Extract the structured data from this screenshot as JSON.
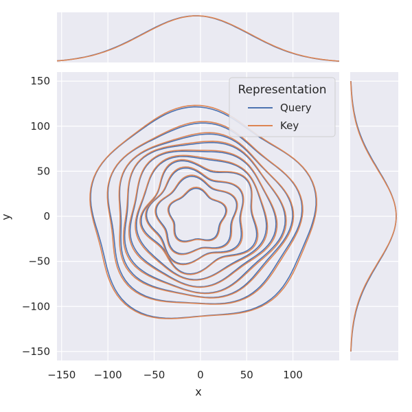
{
  "chart_data": {
    "type": "kde-joint",
    "xlabel": "x",
    "ylabel": "y",
    "xlim": [
      -155,
      150
    ],
    "ylim": [
      -160,
      160
    ],
    "xticks": [
      -150,
      -100,
      -50,
      0,
      50,
      100
    ],
    "yticks": [
      -150,
      -100,
      -50,
      0,
      50,
      100,
      150
    ],
    "xtick_labels": [
      "−150",
      "−100",
      "−50",
      "0",
      "50",
      "100"
    ],
    "ytick_labels": [
      "−150",
      "−100",
      "−50",
      "0",
      "50",
      "100",
      "150"
    ],
    "grid": true,
    "legend": {
      "title": "Representation",
      "position": "top-right"
    },
    "series": [
      {
        "name": "Query",
        "color": "#4c72b0",
        "contour_half_widths": [
          116,
          100,
          90,
          83,
          75,
          67,
          58,
          49,
          40,
          28
        ],
        "marginal_x": {
          "peak_x": -5,
          "spread": 58
        },
        "marginal_y": {
          "peak_y": 0,
          "spread": 52
        }
      },
      {
        "name": "Key",
        "color": "#dd8452",
        "contour_half_widths": [
          117,
          101,
          91,
          84,
          76,
          68,
          59,
          50,
          41,
          29
        ],
        "marginal_x": {
          "peak_x": -4,
          "spread": 58
        },
        "marginal_y": {
          "peak_y": 0,
          "spread": 51
        }
      }
    ]
  }
}
